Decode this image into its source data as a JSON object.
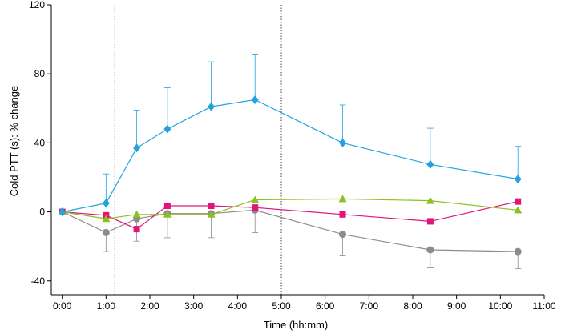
{
  "chart_data": {
    "type": "line",
    "title": "",
    "xlabel": "Time (hh:mm)",
    "ylabel": "Cold PTT (s): % change",
    "xlim": [
      -0.25,
      11.0
    ],
    "ylim": [
      -48,
      120
    ],
    "x_ticks": [
      {
        "value": 0,
        "label": "0:00"
      },
      {
        "value": 1,
        "label": "1:00"
      },
      {
        "value": 2,
        "label": "2:00"
      },
      {
        "value": 3,
        "label": "3:00"
      },
      {
        "value": 4,
        "label": "4:00"
      },
      {
        "value": 5,
        "label": "5:00"
      },
      {
        "value": 6,
        "label": "6:00"
      },
      {
        "value": 7,
        "label": "7:00"
      },
      {
        "value": 8,
        "label": "8:00"
      },
      {
        "value": 9,
        "label": "9:00"
      },
      {
        "value": 10,
        "label": "10:00"
      },
      {
        "value": 11,
        "label": "11:00"
      }
    ],
    "y_ticks": [
      {
        "value": -40,
        "label": "-40"
      },
      {
        "value": 0,
        "label": "0"
      },
      {
        "value": 40,
        "label": "40"
      },
      {
        "value": 80,
        "label": "80"
      },
      {
        "value": 120,
        "label": "120"
      }
    ],
    "reference_lines_x": [
      1.2,
      5.0
    ],
    "grid": false,
    "legend": "none",
    "series": [
      {
        "marker": "circle",
        "color": "#8c8c8c",
        "x": [
          0,
          1,
          1.7,
          2.4,
          3.4,
          4.4,
          6.4,
          8.4,
          10.4
        ],
        "y": [
          0,
          -12,
          -4,
          -1,
          -1,
          1,
          -13,
          -22,
          -23
        ],
        "err_up": [
          0,
          0,
          0,
          0,
          0,
          0,
          0,
          0,
          0
        ],
        "err_down": [
          0,
          11,
          13,
          14,
          14,
          13,
          12,
          10,
          10
        ]
      },
      {
        "marker": "square",
        "color": "#e0147a",
        "x": [
          0,
          1,
          1.7,
          2.4,
          3.4,
          4.4,
          6.4,
          8.4,
          10.4
        ],
        "y": [
          0,
          -2,
          -10,
          3.5,
          3.5,
          2.5,
          -1.5,
          -5.5,
          6
        ],
        "err_up": [
          0,
          0,
          0,
          0,
          0,
          0,
          0,
          0,
          0
        ],
        "err_down": [
          0,
          0,
          0,
          0,
          0,
          0,
          0,
          0,
          0
        ]
      },
      {
        "marker": "triangle",
        "color": "#8dbf1f",
        "x": [
          0,
          1,
          1.7,
          2.4,
          3.4,
          4.4,
          6.4,
          8.4,
          10.4
        ],
        "y": [
          0,
          -4,
          -1.5,
          -1.5,
          -1.5,
          7,
          7.5,
          6.5,
          1
        ],
        "err_up": [
          0,
          0,
          0,
          0,
          0,
          0,
          0,
          0,
          0
        ],
        "err_down": [
          0,
          0,
          0,
          0,
          0,
          0,
          0,
          0,
          0
        ]
      },
      {
        "marker": "diamond",
        "color": "#22a3e0",
        "x": [
          0,
          1,
          1.7,
          2.4,
          3.4,
          4.4,
          6.4,
          8.4,
          10.4
        ],
        "y": [
          0,
          5,
          37,
          48,
          61,
          65,
          40,
          27.5,
          19
        ],
        "err_up": [
          0,
          17,
          22,
          24,
          26,
          26,
          22,
          21,
          19
        ],
        "err_down": [
          0,
          0,
          0,
          0,
          0,
          0,
          0,
          0,
          0
        ]
      }
    ]
  }
}
